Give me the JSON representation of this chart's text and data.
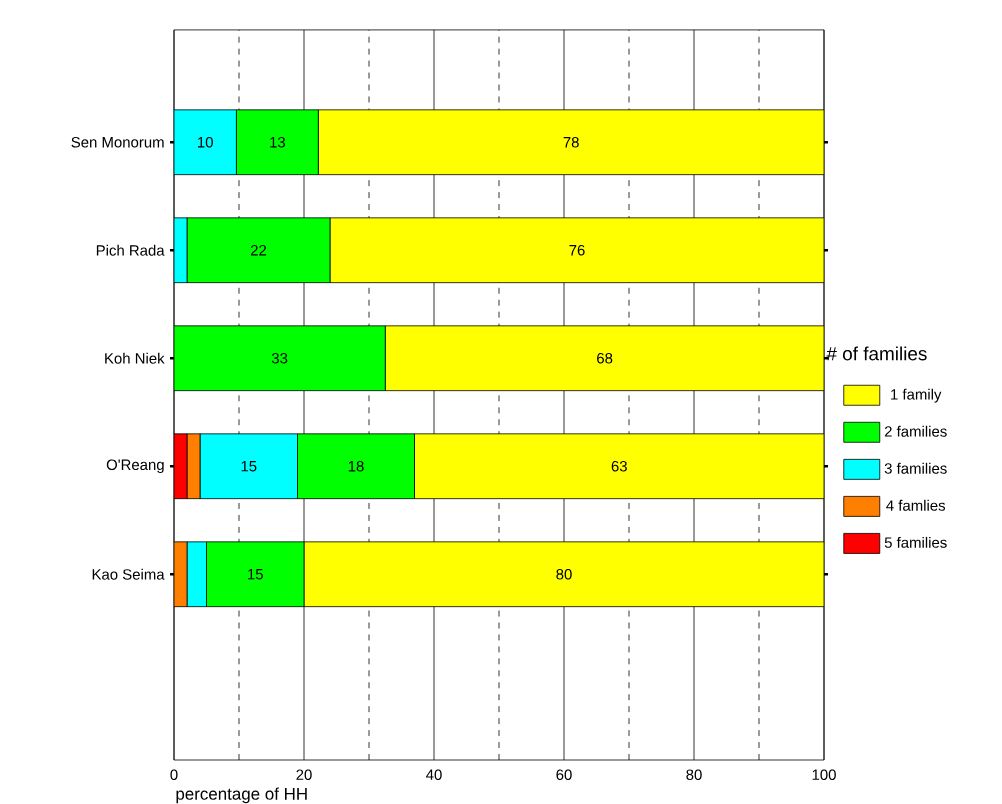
{
  "chart_data": {
    "type": "bar",
    "orientation": "horizontal",
    "stacked": true,
    "categories": [
      "Sen Monorum",
      "Pich Rada",
      "Koh Niek",
      "O'Reang",
      "Kao Seima"
    ],
    "series": [
      {
        "name": "5 families",
        "color": "#ff0000",
        "values": [
          0,
          0,
          0,
          2,
          0
        ],
        "value_labels": [
          null,
          null,
          null,
          null,
          null
        ]
      },
      {
        "name": "4 famlies",
        "color": "#ff8000",
        "values": [
          0,
          0,
          0,
          2,
          2
        ],
        "value_labels": [
          null,
          null,
          null,
          null,
          null
        ]
      },
      {
        "name": "3 families",
        "color": "#00ffff",
        "values": [
          9.6,
          2,
          0,
          15,
          3
        ],
        "value_labels": [
          "10",
          null,
          null,
          "15",
          null
        ]
      },
      {
        "name": "2 families",
        "color": "#00ff00",
        "values": [
          12.6,
          22,
          32.5,
          18,
          15
        ],
        "value_labels": [
          "13",
          "22",
          "33",
          "18",
          "15"
        ]
      },
      {
        "name": "1 family",
        "color": "#ffff00",
        "values": [
          77.8,
          76,
          67.5,
          63,
          80
        ],
        "value_labels": [
          "78",
          "76",
          "68",
          "63",
          "80"
        ]
      }
    ],
    "xlim": [
      0,
      100
    ],
    "xticks": [
      0,
      20,
      40,
      60,
      80,
      100
    ],
    "xlabel": "percentage of HH",
    "legend_title": "# of families",
    "legend": "right",
    "grid": "x"
  }
}
